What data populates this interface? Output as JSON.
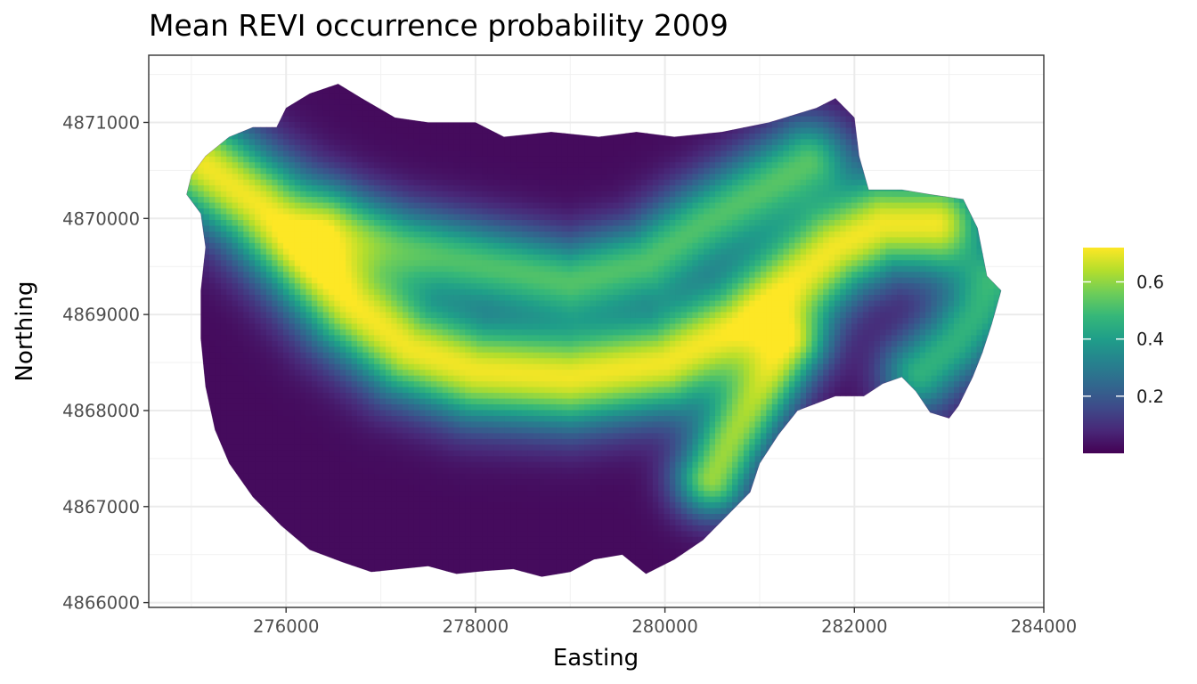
{
  "chart_data": {
    "type": "heatmap",
    "title": "Mean REVI occurrence probability 2009",
    "xlabel": "Easting",
    "ylabel": "Northing",
    "xlim": [
      274550,
      284000
    ],
    "ylim": [
      4865950,
      4871700
    ],
    "x_ticks": [
      276000,
      278000,
      280000,
      282000,
      284000
    ],
    "y_ticks": [
      4866000,
      4867000,
      4868000,
      4869000,
      4870000,
      4871000
    ],
    "x_tick_labels": [
      "276000",
      "278000",
      "280000",
      "282000",
      "284000"
    ],
    "y_tick_labels": [
      "4866000",
      "4867000",
      "4868000",
      "4869000",
      "4870000",
      "4871000"
    ],
    "grid": true,
    "legend": {
      "placement": "right",
      "colormap": "viridis",
      "value_range": [
        0.0,
        0.72
      ],
      "ticks": [
        0.2,
        0.4,
        0.6
      ],
      "tick_labels": [
        "0.2",
        "0.4",
        "0.6"
      ]
    },
    "boundary": [
      [
        275000,
        4870450
      ],
      [
        275150,
        4870650
      ],
      [
        275400,
        4870850
      ],
      [
        275650,
        4870950
      ],
      [
        275900,
        4870950
      ],
      [
        276000,
        4871150
      ],
      [
        276250,
        4871300
      ],
      [
        276550,
        4871400
      ],
      [
        276800,
        4871250
      ],
      [
        277150,
        4871050
      ],
      [
        277500,
        4871000
      ],
      [
        278000,
        4871000
      ],
      [
        278300,
        4870850
      ],
      [
        278800,
        4870900
      ],
      [
        279300,
        4870850
      ],
      [
        279700,
        4870900
      ],
      [
        280100,
        4870850
      ],
      [
        280600,
        4870900
      ],
      [
        281100,
        4871000
      ],
      [
        281600,
        4871150
      ],
      [
        281800,
        4871250
      ],
      [
        282000,
        4871050
      ],
      [
        282050,
        4870650
      ],
      [
        282150,
        4870300
      ],
      [
        282500,
        4870300
      ],
      [
        282800,
        4870250
      ],
      [
        283150,
        4870200
      ],
      [
        283300,
        4869900
      ],
      [
        283400,
        4869400
      ],
      [
        283550,
        4869250
      ],
      [
        283450,
        4868900
      ],
      [
        283350,
        4868600
      ],
      [
        283250,
        4868350
      ],
      [
        283100,
        4868050
      ],
      [
        283000,
        4867920
      ],
      [
        282800,
        4867980
      ],
      [
        282650,
        4868200
      ],
      [
        282500,
        4868350
      ],
      [
        282300,
        4868280
      ],
      [
        282100,
        4868150
      ],
      [
        281800,
        4868150
      ],
      [
        281400,
        4868000
      ],
      [
        281200,
        4867750
      ],
      [
        281000,
        4867450
      ],
      [
        280900,
        4867150
      ],
      [
        280650,
        4866900
      ],
      [
        280400,
        4866650
      ],
      [
        280100,
        4866450
      ],
      [
        279800,
        4866300
      ],
      [
        279550,
        4866500
      ],
      [
        279250,
        4866450
      ],
      [
        279000,
        4866320
      ],
      [
        278700,
        4866270
      ],
      [
        278400,
        4866350
      ],
      [
        278100,
        4866330
      ],
      [
        277800,
        4866300
      ],
      [
        277500,
        4866380
      ],
      [
        277200,
        4866350
      ],
      [
        276900,
        4866320
      ],
      [
        276600,
        4866420
      ],
      [
        276250,
        4866550
      ],
      [
        275950,
        4866800
      ],
      [
        275650,
        4867100
      ],
      [
        275400,
        4867450
      ],
      [
        275250,
        4867800
      ],
      [
        275150,
        4868250
      ],
      [
        275100,
        4868750
      ],
      [
        275100,
        4869250
      ],
      [
        275150,
        4869700
      ],
      [
        275100,
        4870050
      ],
      [
        274950,
        4870250
      ]
    ],
    "occurrence_model": {
      "baseline": 0.02,
      "ridges": [
        {
          "peak": 0.7,
          "width": 380,
          "path": [
            [
              275150,
              4870550
            ],
            [
              275700,
              4870150
            ],
            [
              276200,
              4869650
            ],
            [
              276700,
              4869100
            ],
            [
              277300,
              4868650
            ],
            [
              278000,
              4868420
            ],
            [
              279000,
              4868350
            ],
            [
              280000,
              4868500
            ],
            [
              280800,
              4868900
            ],
            [
              281300,
              4869300
            ],
            [
              281800,
              4869700
            ],
            [
              282300,
              4869950
            ],
            [
              282850,
              4869950
            ]
          ]
        },
        {
          "peak": 0.5,
          "width": 320,
          "path": [
            [
              276500,
              4869900
            ],
            [
              277200,
              4869700
            ],
            [
              278200,
              4869500
            ],
            [
              279000,
              4869350
            ],
            [
              279800,
              4869550
            ],
            [
              280400,
              4869950
            ],
            [
              281000,
              4870300
            ],
            [
              281500,
              4870600
            ]
          ]
        },
        {
          "peak": 0.6,
          "width": 280,
          "path": [
            [
              280500,
              4867300
            ],
            [
              280700,
              4867700
            ],
            [
              281000,
              4868200
            ],
            [
              281300,
              4868700
            ]
          ]
        },
        {
          "peak": 0.45,
          "width": 300,
          "path": [
            [
              282700,
              4868400
            ],
            [
              283050,
              4868700
            ],
            [
              283300,
              4869000
            ],
            [
              283450,
              4869300
            ]
          ]
        }
      ]
    }
  }
}
